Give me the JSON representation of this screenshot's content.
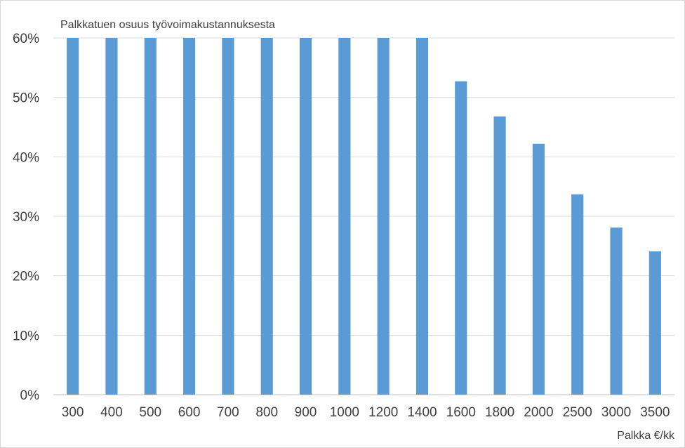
{
  "chart_data": {
    "type": "bar",
    "title": "",
    "ylabel": "Palkkatuen osuus työvoimakustannuksesta",
    "xlabel": "Palkka €/kk",
    "categories": [
      "300",
      "400",
      "500",
      "600",
      "700",
      "800",
      "900",
      "1000",
      "1200",
      "1400",
      "1600",
      "1800",
      "2000",
      "2500",
      "3000",
      "3500"
    ],
    "values": [
      0.6,
      0.6,
      0.6,
      0.6,
      0.6,
      0.6,
      0.6,
      0.6,
      0.6,
      0.6,
      0.527,
      0.468,
      0.422,
      0.337,
      0.281,
      0.241
    ],
    "ylim": [
      0,
      0.6
    ],
    "yticks": [
      "0%",
      "10%",
      "20%",
      "30%",
      "40%",
      "50%",
      "60%"
    ],
    "grid": true,
    "legend": "none",
    "colors": {
      "bar": "#5b9bd5",
      "grid": "#d9d9d9",
      "axis": "#bfbfbf"
    }
  }
}
